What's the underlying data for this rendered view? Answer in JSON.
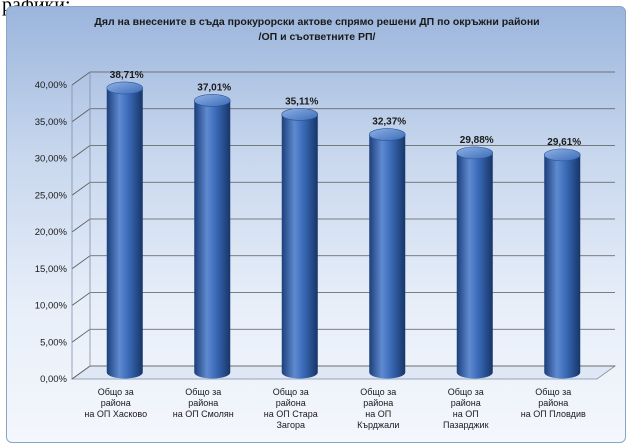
{
  "page_header": {
    "text": "рафики:"
  },
  "chart_data": {
    "type": "bar",
    "title": "Дял на внесените в съда прокурорски актове спрямо решени ДП по окръжни райони",
    "subtitle": "/ОП и съответните РП/",
    "categories": [
      "Общо за района на ОП Хасково",
      "Общо за района на ОП Смолян",
      "Общо за района на ОП Стара Загора",
      "Общо за района на ОП Кърджали",
      "Общо за района на ОП Пазарджик",
      "Общо за района на ОП Пловдив"
    ],
    "category_lines": [
      [
        "Общо за",
        "района",
        "на ОП Хасково"
      ],
      [
        "Общо за",
        "района",
        "на ОП Смолян"
      ],
      [
        "Общо за",
        "района",
        "на ОП Стара",
        "Загора"
      ],
      [
        "Общо за",
        "района",
        "на ОП",
        "Кърджали"
      ],
      [
        "Общо за",
        "района",
        "на ОП",
        "Пазарджик"
      ],
      [
        "Общо за",
        "района",
        "на ОП Пловдив"
      ]
    ],
    "values": [
      38.71,
      37.01,
      35.11,
      32.37,
      29.88,
      29.61
    ],
    "data_labels": [
      "38,71%",
      "37,01%",
      "35,11%",
      "32,37%",
      "29,88%",
      "29,61%"
    ],
    "ylim": [
      0,
      40
    ],
    "yticks": [
      0,
      5,
      10,
      15,
      20,
      25,
      30,
      35,
      40
    ],
    "ytick_labels": [
      "0,00%",
      "5,00%",
      "10,00%",
      "15,00%",
      "20,00%",
      "25,00%",
      "30,00%",
      "35,00%",
      "40,00%"
    ],
    "xlabel": "",
    "ylabel": "",
    "grid": true,
    "legend": false,
    "colors": {
      "bar": "#2f5fa8",
      "bar_dark": "#1c3f7a",
      "bar_light": "#6f97d6",
      "grid": "#5a5a5a"
    }
  }
}
